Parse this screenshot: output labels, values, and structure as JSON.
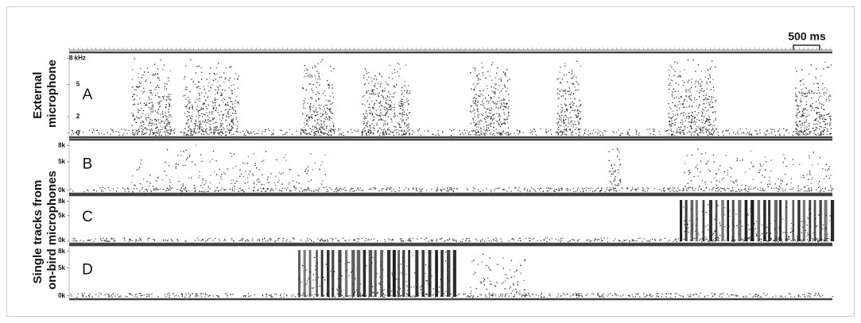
{
  "scale_bar": "500 ms",
  "row_labels": [
    [
      "External",
      "microphone"
    ],
    [
      "Single tracks from",
      "on-bird microphones"
    ]
  ],
  "panels": [
    {
      "label": "A",
      "ticks": [
        "8 kHz",
        "5",
        "2",
        "0"
      ]
    },
    {
      "label": "B",
      "ticks": [
        "8k",
        "5k",
        "0k"
      ]
    },
    {
      "label": "C",
      "ticks": [
        "8k",
        "5k",
        "0k"
      ]
    },
    {
      "label": "D",
      "ticks": [
        "8k",
        "5k",
        "0k"
      ]
    }
  ]
}
